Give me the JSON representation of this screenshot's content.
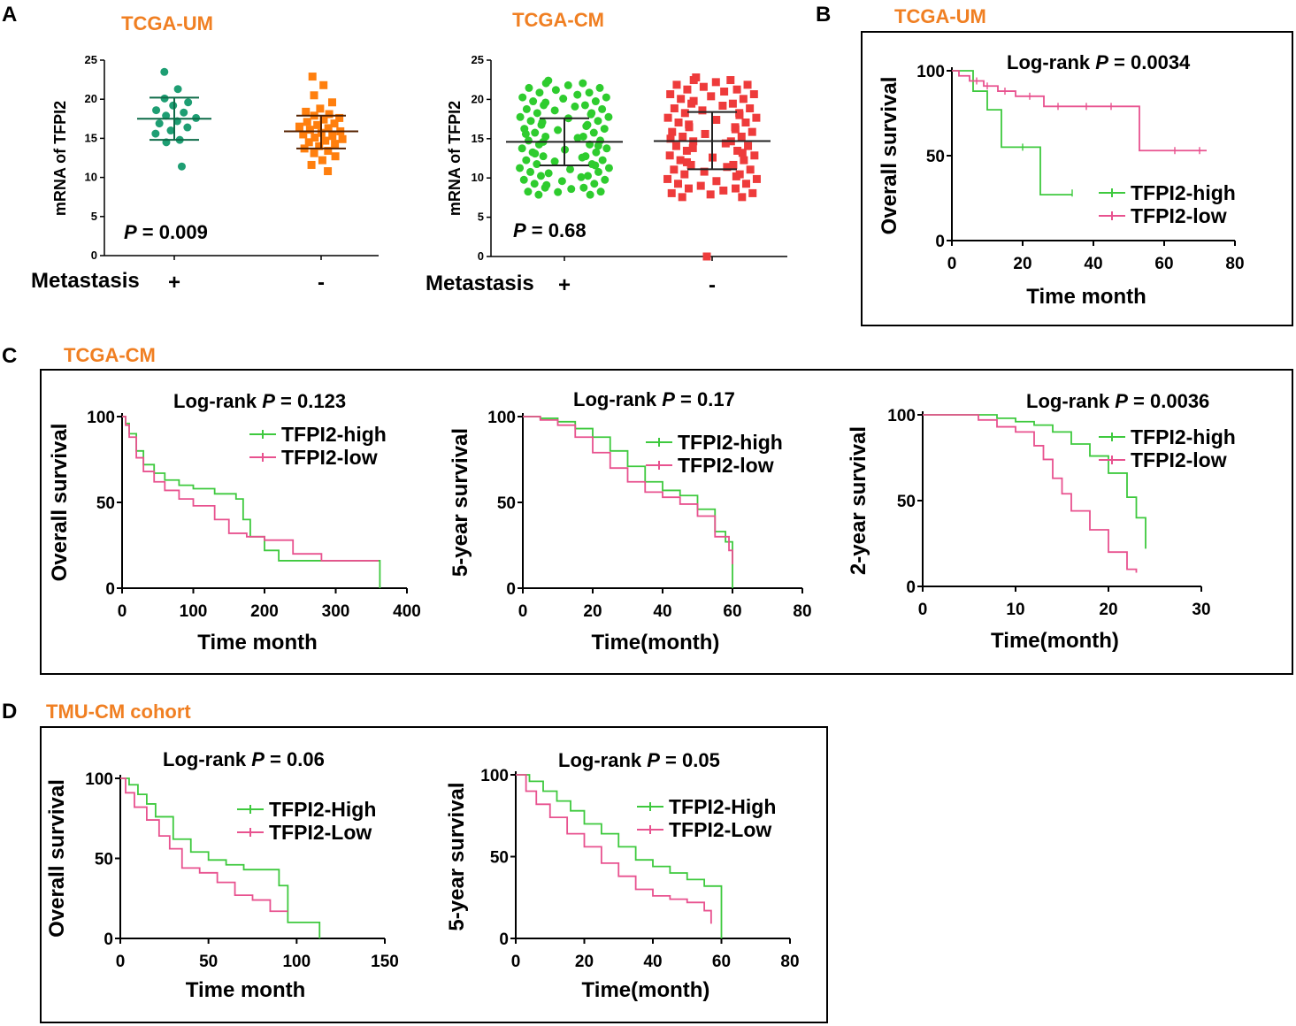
{
  "colors": {
    "orange": "#f07f22",
    "green": "#3ec93e",
    "pink": "#e8528f",
    "teal": "#1e9e73",
    "dotorange": "#ff7f0e",
    "dotgreen": "#2ecc2e",
    "dotred": "#ee3b3b"
  },
  "panels": {
    "A": "A",
    "B": "B",
    "C": "C",
    "D": "D",
    "A_left_title": "TCGA-UM",
    "A_right_title": "TCGA-CM",
    "B_title": "TCGA-UM",
    "C_title": "TCGA-CM",
    "D_title": "TMU-CM cohort"
  },
  "chart_data": [
    {
      "id": "A-UM",
      "type": "scatter",
      "title": "TCGA-UM",
      "ylabel": "mRNA of TFPI2",
      "ylim": [
        0,
        25
      ],
      "yticks": [
        "0",
        "5",
        "10",
        "15",
        "20",
        "25"
      ],
      "group_title": "Metastasis",
      "categories": [
        "+",
        "-"
      ],
      "p_label": "P",
      "p_value": " = 0.009",
      "groups": [
        {
          "name": "+",
          "mean": 17.5,
          "sd_low": 14.8,
          "sd_high": 20.2,
          "values": [
            23.5,
            21.3,
            20.1,
            19.6,
            19.2,
            18.6,
            18.3,
            17.9,
            17.6,
            17.2,
            16.9,
            16.4,
            16.0,
            15.6,
            14.8,
            14.5,
            11.4
          ]
        },
        {
          "name": "-",
          "mean": 15.9,
          "sd_low": 13.7,
          "sd_high": 17.9,
          "values": [
            22.9,
            21.8,
            20.5,
            19.6,
            18.8,
            18.4,
            18.1,
            17.9,
            17.6,
            17.4,
            17.1,
            16.9,
            16.7,
            16.5,
            16.3,
            16.1,
            15.9,
            15.7,
            15.5,
            15.3,
            15.1,
            14.9,
            14.7,
            14.5,
            14.3,
            14.0,
            13.7,
            13.4,
            13.1,
            12.7,
            12.2,
            11.6,
            10.8
          ]
        }
      ]
    },
    {
      "id": "A-CM",
      "type": "scatter",
      "title": "TCGA-CM",
      "ylabel": "mRNA of TFPI2",
      "ylim": [
        0,
        25
      ],
      "yticks": [
        "0",
        "5",
        "10",
        "15",
        "20",
        "25"
      ],
      "group_title": "Metastasis",
      "categories": [
        "+",
        "-"
      ],
      "p_label": "P",
      "p_value": " = 0.68",
      "groups": [
        {
          "name": "+",
          "mean": 14.6,
          "sd_low": 11.6,
          "sd_high": 17.6,
          "values": [
            22.4,
            21.8,
            21.2,
            20.6,
            20.1,
            19.6,
            19.1,
            18.6,
            18.1,
            17.6,
            17.1,
            16.6,
            16.1,
            15.6,
            15.1,
            14.6,
            14.1,
            13.6,
            13.1,
            12.6,
            12.1,
            11.6,
            11.1,
            10.6,
            10.1,
            9.6,
            9.1,
            8.6,
            8.2
          ]
        },
        {
          "name": "-",
          "mean": 14.7,
          "sd_low": 11.1,
          "sd_high": 18.4,
          "values": [
            22.8,
            22.2,
            21.6,
            21.0,
            20.4,
            19.8,
            19.2,
            18.6,
            18.0,
            17.4,
            16.8,
            16.2,
            15.6,
            15.0,
            14.4,
            13.8,
            13.2,
            12.6,
            12.0,
            11.4,
            10.8,
            10.2,
            9.6,
            9.0,
            8.4,
            7.9,
            0
          ]
        }
      ]
    },
    {
      "id": "B",
      "type": "line",
      "title": "TCGA-UM",
      "xlabel": "Time month",
      "ylabel": "Overall survival",
      "xlim": [
        0,
        80
      ],
      "ylim": [
        0,
        100
      ],
      "xticks": [
        "0",
        "20",
        "40",
        "60",
        "80"
      ],
      "yticks": [
        "0",
        "50",
        "100"
      ],
      "logrank_prefix": "Log-rank ",
      "p_label": "P",
      "p_value": " = 0.0034",
      "series": [
        {
          "name": "TFPI2-high",
          "color": "#3ec93e",
          "x": [
            0,
            3,
            6,
            10,
            14,
            25,
            34
          ],
          "y": [
            100,
            100,
            88,
            77,
            55,
            27,
            27
          ],
          "censor_x": [
            20,
            34
          ],
          "censor_y": [
            55,
            28
          ]
        },
        {
          "name": "TFPI2-low",
          "color": "#e8528f",
          "x": [
            0,
            2,
            5,
            9,
            13,
            18,
            26,
            53,
            72
          ],
          "y": [
            100,
            97,
            94,
            91,
            88,
            85,
            79,
            53,
            53
          ],
          "censor_x": [
            7,
            10,
            15,
            22,
            30,
            38,
            45,
            63,
            70
          ],
          "censor_y": [
            94,
            91,
            88,
            85,
            79,
            79,
            79,
            53,
            53
          ]
        }
      ]
    },
    {
      "id": "C1",
      "type": "line",
      "xlabel": "Time month",
      "ylabel": "Overall survival",
      "xlim": [
        0,
        400
      ],
      "ylim": [
        0,
        100
      ],
      "xticks": [
        "0",
        "100",
        "200",
        "300",
        "400"
      ],
      "yticks": [
        "0",
        "50",
        "100"
      ],
      "logrank_prefix": "Log-rank ",
      "p_label": "P",
      "p_value": " = 0.123",
      "series": [
        {
          "name": "TFPI2-high",
          "color": "#3ec93e",
          "x": [
            0,
            5,
            10,
            20,
            30,
            45,
            60,
            80,
            100,
            130,
            160,
            170,
            180,
            200,
            220,
            300,
            340,
            362
          ],
          "y": [
            100,
            96,
            90,
            80,
            72,
            67,
            63,
            60,
            58,
            55,
            52,
            40,
            30,
            22,
            16,
            16,
            16,
            0
          ]
        },
        {
          "name": "TFPI2-low",
          "color": "#e8528f",
          "x": [
            0,
            5,
            10,
            20,
            30,
            45,
            60,
            80,
            100,
            130,
            150,
            175,
            200,
            240,
            280,
            320,
            360
          ],
          "y": [
            100,
            95,
            88,
            76,
            68,
            62,
            57,
            52,
            48,
            40,
            32,
            30,
            28,
            20,
            16,
            16,
            16
          ]
        }
      ]
    },
    {
      "id": "C2",
      "type": "line",
      "xlabel": "Time(month)",
      "ylabel": "5-year survival",
      "xlim": [
        0,
        80
      ],
      "ylim": [
        0,
        100
      ],
      "xticks": [
        "0",
        "20",
        "40",
        "60",
        "80"
      ],
      "yticks": [
        "0",
        "50",
        "100"
      ],
      "logrank_prefix": "Log-rank ",
      "p_label": "P",
      "p_value": " = 0.17",
      "series": [
        {
          "name": "TFPI2-high",
          "color": "#3ec93e",
          "x": [
            0,
            5,
            10,
            15,
            20,
            25,
            30,
            35,
            40,
            45,
            50,
            55,
            58,
            60
          ],
          "y": [
            100,
            99,
            97,
            93,
            88,
            80,
            71,
            62,
            57,
            54,
            46,
            33,
            27,
            0
          ]
        },
        {
          "name": "TFPI2-low",
          "color": "#e8528f",
          "x": [
            0,
            5,
            10,
            15,
            20,
            25,
            30,
            35,
            40,
            45,
            50,
            55,
            59,
            60
          ],
          "y": [
            100,
            98,
            95,
            88,
            79,
            70,
            62,
            56,
            53,
            49,
            42,
            30,
            22,
            14
          ]
        }
      ]
    },
    {
      "id": "C3",
      "type": "line",
      "xlabel": "Time(month)",
      "ylabel": "2-year survival",
      "xlim": [
        0,
        30
      ],
      "ylim": [
        0,
        100
      ],
      "xticks": [
        "0",
        "10",
        "20",
        "30"
      ],
      "yticks": [
        "0",
        "50",
        "100"
      ],
      "logrank_prefix": "Log-rank ",
      "p_label": "P",
      "p_value": " = 0.0036",
      "series": [
        {
          "name": "TFPI2-high",
          "color": "#3ec93e",
          "x": [
            0,
            4,
            6,
            8,
            10,
            12,
            14,
            16,
            18,
            20,
            22,
            23,
            24
          ],
          "y": [
            100,
            100,
            100,
            98,
            96,
            94,
            90,
            83,
            76,
            66,
            52,
            40,
            22
          ]
        },
        {
          "name": "TFPI2-low",
          "color": "#e8528f",
          "x": [
            0,
            3,
            6,
            8,
            10,
            12,
            13,
            14,
            15,
            16,
            18,
            20,
            22,
            23
          ],
          "y": [
            100,
            100,
            97,
            93,
            90,
            82,
            74,
            63,
            54,
            44,
            33,
            20,
            10,
            8
          ]
        }
      ]
    },
    {
      "id": "D1",
      "type": "line",
      "xlabel": "Time month",
      "ylabel": "Overall survival",
      "xlim": [
        0,
        150
      ],
      "ylim": [
        0,
        100
      ],
      "xticks": [
        "0",
        "50",
        "100",
        "150"
      ],
      "yticks": [
        "0",
        "50",
        "100"
      ],
      "logrank_prefix": "Log-rank ",
      "p_label": "P",
      "p_value": " = 0.06",
      "series": [
        {
          "name": "TFPI2-High",
          "color": "#3ec93e",
          "x": [
            0,
            5,
            10,
            15,
            20,
            30,
            40,
            50,
            60,
            70,
            80,
            90,
            95,
            100,
            113
          ],
          "y": [
            100,
            96,
            90,
            84,
            76,
            62,
            54,
            49,
            46,
            43,
            43,
            33,
            10,
            10,
            0
          ]
        },
        {
          "name": "TFPI2-Low",
          "color": "#e8528f",
          "x": [
            0,
            3,
            8,
            15,
            22,
            28,
            35,
            45,
            55,
            65,
            75,
            85,
            95
          ],
          "y": [
            100,
            91,
            82,
            74,
            64,
            56,
            44,
            41,
            35,
            27,
            24,
            17,
            17
          ]
        }
      ]
    },
    {
      "id": "D2",
      "type": "line",
      "xlabel": "Time(month)",
      "ylabel": "5-year survival",
      "xlim": [
        0,
        80
      ],
      "ylim": [
        0,
        100
      ],
      "xticks": [
        "0",
        "20",
        "40",
        "60",
        "80"
      ],
      "yticks": [
        "0",
        "50",
        "100"
      ],
      "logrank_prefix": "Log-rank ",
      "p_label": "P",
      "p_value": " = 0.05",
      "series": [
        {
          "name": "TFPI2-High",
          "color": "#3ec93e",
          "x": [
            0,
            4,
            8,
            12,
            16,
            20,
            25,
            30,
            35,
            40,
            45,
            50,
            55,
            60
          ],
          "y": [
            100,
            96,
            90,
            84,
            78,
            70,
            64,
            56,
            48,
            44,
            40,
            36,
            32,
            0
          ]
        },
        {
          "name": "TFPI2-Low",
          "color": "#e8528f",
          "x": [
            0,
            3,
            6,
            10,
            15,
            20,
            25,
            30,
            35,
            40,
            45,
            50,
            55,
            57
          ],
          "y": [
            100,
            90,
            82,
            74,
            64,
            56,
            46,
            38,
            30,
            26,
            24,
            22,
            17,
            9
          ]
        }
      ]
    }
  ]
}
